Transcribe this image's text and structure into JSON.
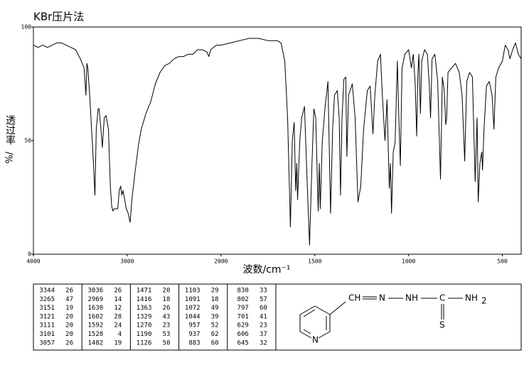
{
  "chart_data": {
    "type": "line",
    "title": "KBr压片法",
    "y_label": "透过率",
    "y_unit": "%/",
    "x_label": "波数/cm⁻¹",
    "xlim": [
      4000,
      400
    ],
    "xbreak": 2000,
    "xticks": [
      4000,
      3000,
      2000,
      1500,
      1000,
      500
    ],
    "ylim": [
      0,
      100
    ],
    "yticks": [
      0,
      50,
      100
    ],
    "color": "#000000",
    "x": [
      4000,
      3950,
      3900,
      3850,
      3800,
      3750,
      3700,
      3650,
      3600,
      3550,
      3500,
      3460,
      3440,
      3430,
      3420,
      3400,
      3380,
      3360,
      3344,
      3330,
      3310,
      3300,
      3280,
      3265,
      3245,
      3225,
      3200,
      3180,
      3165,
      3151,
      3140,
      3121,
      3111,
      3101,
      3085,
      3070,
      3057,
      3045,
      3036,
      3010,
      2990,
      2969,
      2950,
      2920,
      2880,
      2850,
      2800,
      2750,
      2700,
      2650,
      2600,
      2550,
      2500,
      2450,
      2400,
      2350,
      2300,
      2250,
      2200,
      2150,
      2130,
      2110,
      2050,
      2000,
      1950,
      1900,
      1850,
      1800,
      1750,
      1700,
      1680,
      1660,
      1645,
      1630,
      1620,
      1610,
      1602,
      1596,
      1592,
      1580,
      1570,
      1555,
      1540,
      1528,
      1515,
      1505,
      1495,
      1482,
      1476,
      1471,
      1460,
      1445,
      1430,
      1416,
      1405,
      1395,
      1380,
      1370,
      1363,
      1355,
      1345,
      1335,
      1329,
      1320,
      1300,
      1285,
      1270,
      1255,
      1240,
      1220,
      1205,
      1190,
      1180,
      1165,
      1150,
      1140,
      1126,
      1115,
      1103,
      1097,
      1091,
      1082,
      1072,
      1060,
      1052,
      1044,
      1035,
      1020,
      1000,
      985,
      975,
      965,
      957,
      950,
      945,
      937,
      930,
      915,
      900,
      890,
      883,
      875,
      860,
      845,
      830,
      820,
      810,
      802,
      797,
      790,
      770,
      750,
      730,
      715,
      701,
      690,
      675,
      660,
      645,
      635,
      629,
      620,
      610,
      606,
      598,
      585,
      570,
      555,
      545,
      535,
      520,
      500,
      485,
      470,
      460,
      445,
      430,
      415,
      400
    ],
    "values": [
      92,
      91,
      92,
      91,
      92,
      93,
      93,
      92,
      91,
      90,
      86,
      82,
      70,
      84,
      82,
      70,
      55,
      40,
      26,
      55,
      64,
      64,
      55,
      47,
      60,
      61,
      55,
      30,
      21,
      19,
      20,
      20,
      20,
      20,
      28,
      30,
      26,
      28,
      26,
      20,
      18,
      14,
      24,
      35,
      48,
      55,
      62,
      67,
      75,
      80,
      83,
      84,
      86,
      87,
      87,
      88,
      88,
      90,
      90,
      89,
      87,
      90,
      92,
      92,
      93,
      94,
      95,
      95,
      94,
      94,
      93,
      85,
      60,
      12,
      50,
      58,
      28,
      40,
      24,
      50,
      60,
      65,
      30,
      4,
      40,
      64,
      60,
      19,
      40,
      20,
      50,
      65,
      76,
      18,
      55,
      70,
      72,
      60,
      26,
      60,
      77,
      78,
      43,
      70,
      75,
      60,
      23,
      30,
      55,
      72,
      74,
      53,
      70,
      85,
      88,
      70,
      50,
      68,
      29,
      40,
      18,
      45,
      49,
      85,
      60,
      39,
      82,
      88,
      90,
      82,
      88,
      75,
      52,
      80,
      88,
      62,
      85,
      90,
      88,
      75,
      60,
      86,
      88,
      76,
      33,
      78,
      72,
      57,
      60,
      80,
      82,
      84,
      80,
      70,
      41,
      76,
      80,
      78,
      32,
      60,
      23,
      40,
      45,
      37,
      55,
      74,
      76,
      70,
      55,
      78,
      82,
      85,
      92,
      90,
      86,
      90,
      93,
      88,
      86
    ]
  },
  "peak_table": {
    "columns": [
      [
        [
          3344,
          26
        ],
        [
          3265,
          47
        ],
        [
          3151,
          19
        ],
        [
          3121,
          20
        ],
        [
          3111,
          20
        ],
        [
          3101,
          20
        ],
        [
          3057,
          26
        ]
      ],
      [
        [
          3036,
          26
        ],
        [
          2969,
          14
        ],
        [
          1630,
          12
        ],
        [
          1602,
          28
        ],
        [
          1592,
          24
        ],
        [
          1528,
          4
        ],
        [
          1482,
          19
        ]
      ],
      [
        [
          1471,
          20
        ],
        [
          1416,
          18
        ],
        [
          1363,
          26
        ],
        [
          1329,
          43
        ],
        [
          1270,
          23
        ],
        [
          1190,
          53
        ],
        [
          1126,
          50
        ]
      ],
      [
        [
          1103,
          29
        ],
        [
          1091,
          18
        ],
        [
          1072,
          49
        ],
        [
          1044,
          39
        ],
        [
          957,
          52
        ],
        [
          937,
          62
        ],
        [
          883,
          60
        ]
      ],
      [
        [
          830,
          33
        ],
        [
          802,
          57
        ],
        [
          797,
          60
        ],
        [
          701,
          41
        ],
        [
          629,
          23
        ],
        [
          606,
          37
        ],
        [
          645,
          32
        ]
      ]
    ]
  },
  "structure": {
    "labels": [
      "CH",
      "N",
      "NH",
      "C",
      "NH",
      "2",
      "S",
      "N"
    ]
  }
}
